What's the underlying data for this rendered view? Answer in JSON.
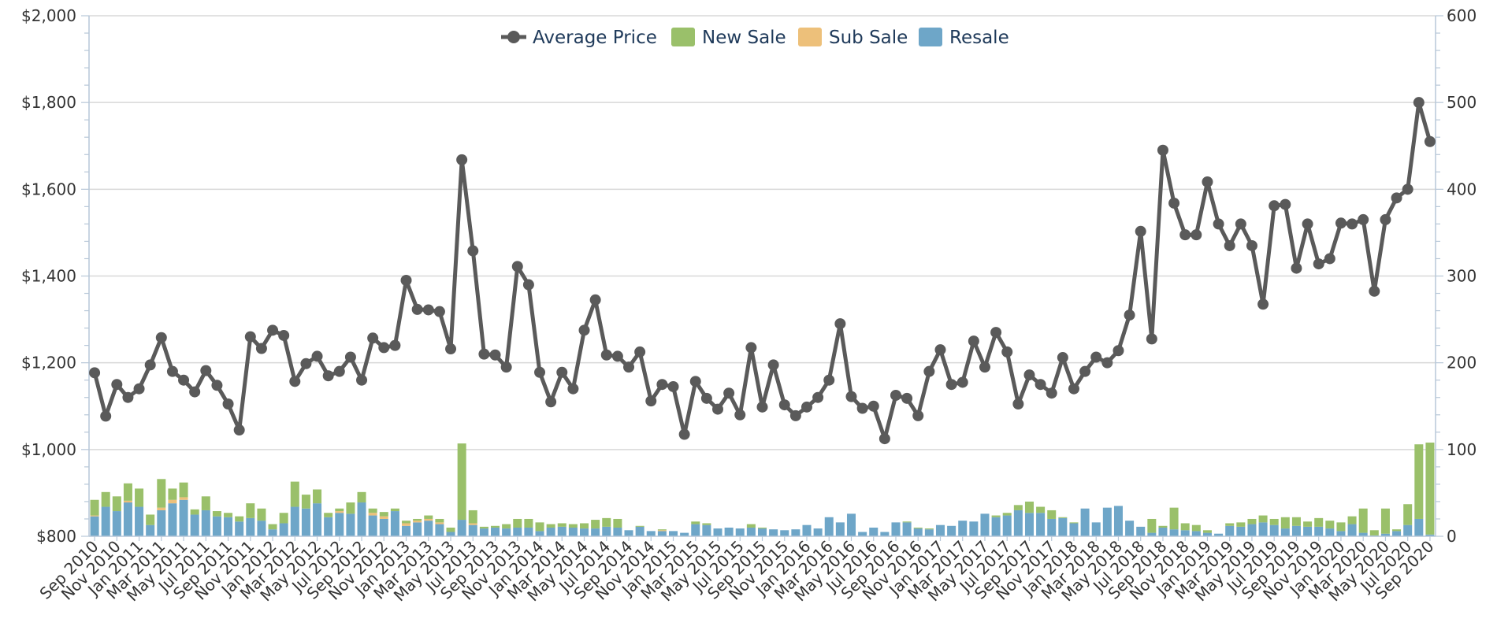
{
  "chart_data": {
    "type": "bar",
    "legend_placement": "top-center",
    "grid": true,
    "colors": {
      "average_price": "#5a5a5a",
      "new_sale": "#9ac06a",
      "sub_sale": "#edc07a",
      "resale": "#6ea6c8",
      "grid": "#d8d8d8",
      "axis": "#b7c7d8"
    },
    "legend": [
      {
        "key": "average_price",
        "label": "Average Price",
        "kind": "line"
      },
      {
        "key": "new_sale",
        "label": "New Sale",
        "kind": "bar"
      },
      {
        "key": "sub_sale",
        "label": "Sub Sale",
        "kind": "bar"
      },
      {
        "key": "resale",
        "label": "Resale",
        "kind": "bar"
      }
    ],
    "y_left": {
      "min": 800,
      "max": 2000,
      "ticks": [
        "$800",
        "$1,000",
        "$1,200",
        "$1,400",
        "$1,600",
        "$1,800",
        "$2,000"
      ]
    },
    "y_right": {
      "min": 0,
      "max": 600,
      "ticks": [
        "0",
        "100",
        "200",
        "300",
        "400",
        "500",
        "600"
      ]
    },
    "x_tick_labels": [
      "Sep 2010",
      "Nov 2010",
      "Jan 2011",
      "Mar 2011",
      "May 2011",
      "Jul 2011",
      "Sep 2011",
      "Nov 2011",
      "Jan 2012",
      "Mar 2012",
      "May 2012",
      "Jul 2012",
      "Sep 2012",
      "Nov 2012",
      "Jan 2013",
      "Mar 2013",
      "May 2013",
      "Jul 2013",
      "Sep 2013",
      "Nov 2013",
      "Jan 2014",
      "Mar 2014",
      "May 2014",
      "Jul 2014",
      "Sep 2014",
      "Nov 2014",
      "Jan 2015",
      "Mar 2015",
      "May 2015",
      "Jul 2015",
      "Sep 2015",
      "Nov 2015",
      "Jan 2016",
      "Mar 2016",
      "May 2016",
      "Jul 2016",
      "Sep 2016",
      "Nov 2016",
      "Jan 2017",
      "Mar 2017",
      "May 2017",
      "Jul 2017",
      "Sep 2017",
      "Nov 2017",
      "Jan 2018",
      "Mar 2018",
      "May 2018",
      "Jul 2018",
      "Sep 2018",
      "Nov 2018",
      "Jan 2019",
      "Mar 2019",
      "May 2019",
      "Jul 2019",
      "Sep 2019",
      "Nov 2019",
      "Jan 2020",
      "Mar 2020",
      "May 2020",
      "Jul 2020",
      "Sep 2020"
    ],
    "categories": [
      "Sep 2010",
      "Oct 2010",
      "Nov 2010",
      "Dec 2010",
      "Jan 2011",
      "Feb 2011",
      "Mar 2011",
      "Apr 2011",
      "May 2011",
      "Jun 2011",
      "Jul 2011",
      "Aug 2011",
      "Sep 2011",
      "Oct 2011",
      "Nov 2011",
      "Dec 2011",
      "Jan 2012",
      "Feb 2012",
      "Mar 2012",
      "Apr 2012",
      "May 2012",
      "Jun 2012",
      "Jul 2012",
      "Aug 2012",
      "Sep 2012",
      "Oct 2012",
      "Nov 2012",
      "Dec 2012",
      "Jan 2013",
      "Feb 2013",
      "Mar 2013",
      "Apr 2013",
      "May 2013",
      "Jun 2013",
      "Jul 2013",
      "Aug 2013",
      "Sep 2013",
      "Oct 2013",
      "Nov 2013",
      "Dec 2013",
      "Jan 2014",
      "Feb 2014",
      "Mar 2014",
      "Apr 2014",
      "May 2014",
      "Jun 2014",
      "Jul 2014",
      "Aug 2014",
      "Sep 2014",
      "Oct 2014",
      "Nov 2014",
      "Dec 2014",
      "Jan 2015",
      "Feb 2015",
      "Mar 2015",
      "Apr 2015",
      "May 2015",
      "Jun 2015",
      "Jul 2015",
      "Aug 2015",
      "Sep 2015",
      "Oct 2015",
      "Nov 2015",
      "Dec 2015",
      "Jan 2016",
      "Feb 2016",
      "Mar 2016",
      "Apr 2016",
      "May 2016",
      "Jun 2016",
      "Jul 2016",
      "Aug 2016",
      "Sep 2016",
      "Oct 2016",
      "Nov 2016",
      "Dec 2016",
      "Jan 2017",
      "Feb 2017",
      "Mar 2017",
      "Apr 2017",
      "May 2017",
      "Jun 2017",
      "Jul 2017",
      "Aug 2017",
      "Sep 2017",
      "Oct 2017",
      "Nov 2017",
      "Dec 2017",
      "Jan 2018",
      "Feb 2018",
      "Mar 2018",
      "Apr 2018",
      "May 2018",
      "Jun 2018",
      "Jul 2018",
      "Aug 2018",
      "Sep 2018",
      "Oct 2018",
      "Nov 2018",
      "Dec 2018",
      "Jan 2019",
      "Feb 2019",
      "Mar 2019",
      "Apr 2019",
      "May 2019",
      "Jun 2019",
      "Jul 2019",
      "Aug 2019",
      "Sep 2019",
      "Oct 2019",
      "Nov 2019",
      "Dec 2019",
      "Jan 2020",
      "Feb 2020",
      "Mar 2020",
      "Apr 2020",
      "May 2020",
      "Jun 2020",
      "Jul 2020",
      "Aug 2020",
      "Sep 2020"
    ],
    "series": [
      {
        "name": "Average Price",
        "axis": "left",
        "kind": "line",
        "values": [
          1177,
          1077,
          1150,
          1120,
          1140,
          1195,
          1258,
          1180,
          1160,
          1133,
          1182,
          1148,
          1105,
          1045,
          1260,
          1233,
          1275,
          1263,
          1157,
          1198,
          1215,
          1170,
          1180,
          1213,
          1160,
          1257,
          1235,
          1240,
          1390,
          1323,
          1322,
          1318,
          1232,
          1668,
          1458,
          1220,
          1218,
          1190,
          1422,
          1380,
          1178,
          1110,
          1178,
          1140,
          1275,
          1345,
          1218,
          1215,
          1190,
          1225,
          1112,
          1150,
          1145,
          1035,
          1157,
          1118,
          1093,
          1130,
          1080,
          1235,
          1098,
          1195,
          1103,
          1078,
          1098,
          1120,
          1160,
          1290,
          1122,
          1095,
          1100,
          1025,
          1125,
          1118,
          1078,
          1180,
          1230,
          1150,
          1155,
          1250,
          1190,
          1270,
          1225,
          1105,
          1172,
          1150,
          1130,
          1212,
          1140,
          1180,
          1213,
          1200,
          1228,
          1310,
          1503,
          1255,
          1690,
          1568,
          1495,
          1495,
          1617,
          1520,
          1470,
          1520,
          1470,
          1335,
          1562,
          1565,
          1418,
          1520,
          1428,
          1440,
          1522,
          1520,
          1530,
          1365,
          1530,
          1580,
          1600,
          1800,
          1710
        ]
      },
      {
        "name": "Resale",
        "axis": "right",
        "kind": "bar",
        "values": [
          23,
          34,
          29,
          39,
          34,
          13,
          30,
          38,
          42,
          25,
          30,
          23,
          22,
          17,
          21,
          18,
          8,
          15,
          34,
          32,
          38,
          22,
          27,
          26,
          39,
          24,
          20,
          29,
          12,
          16,
          18,
          14,
          5,
          19,
          13,
          9,
          10,
          9,
          10,
          10,
          6,
          10,
          11,
          10,
          9,
          9,
          11,
          10,
          7,
          11,
          6,
          6,
          6,
          4,
          14,
          13,
          9,
          10,
          9,
          10,
          9,
          8,
          7,
          8,
          13,
          9,
          22,
          16,
          26,
          5,
          10,
          5,
          16,
          16,
          9,
          8,
          13,
          12,
          18,
          17,
          26,
          22,
          24,
          30,
          27,
          27,
          20,
          21,
          15,
          32,
          16,
          33,
          35,
          18,
          11,
          4,
          10,
          8,
          7,
          6,
          4,
          3,
          12,
          11,
          14,
          16,
          13,
          9,
          12,
          11,
          11,
          9,
          6,
          14,
          4,
          1,
          3,
          6,
          13,
          20,
          2
        ]
      },
      {
        "name": "Sub Sale",
        "axis": "right",
        "kind": "bar",
        "values": [
          1,
          0,
          0,
          2,
          0,
          0,
          3,
          4,
          3,
          0,
          0,
          0,
          0,
          0,
          0,
          0,
          0,
          0,
          0,
          0,
          0,
          0,
          2,
          0,
          0,
          3,
          3,
          0,
          3,
          2,
          2,
          2,
          0,
          0,
          2,
          0,
          0,
          0,
          0,
          0,
          0,
          0,
          0,
          0,
          0,
          0,
          0,
          0,
          0,
          0,
          0,
          1,
          0,
          0,
          0,
          0,
          0,
          0,
          0,
          0,
          0,
          0,
          0,
          0,
          0,
          0,
          0,
          0,
          0,
          0,
          0,
          0,
          0,
          0,
          0,
          0,
          0,
          0,
          0,
          0,
          0,
          0,
          0,
          0,
          0,
          0,
          0,
          0,
          0,
          0,
          0,
          0,
          0,
          0,
          0,
          0,
          0,
          0,
          0,
          0,
          0,
          0,
          0,
          0,
          0,
          0,
          0,
          0,
          0,
          0,
          0,
          0,
          0,
          0,
          0,
          0,
          0,
          0,
          0,
          0,
          0
        ]
      },
      {
        "name": "New Sale",
        "axis": "right",
        "kind": "bar",
        "values": [
          18,
          17,
          17,
          20,
          21,
          12,
          33,
          13,
          17,
          6,
          16,
          6,
          5,
          6,
          17,
          14,
          6,
          12,
          29,
          16,
          16,
          5,
          3,
          13,
          12,
          5,
          5,
          3,
          3,
          2,
          4,
          4,
          5,
          88,
          15,
          2,
          2,
          5,
          10,
          10,
          10,
          4,
          4,
          4,
          6,
          10,
          10,
          10,
          0,
          1,
          0,
          1,
          0,
          0,
          3,
          2,
          0,
          0,
          0,
          4,
          1,
          0,
          0,
          0,
          0,
          0,
          0,
          0,
          0,
          0,
          0,
          0,
          0,
          1,
          1,
          1,
          0,
          0,
          0,
          0,
          0,
          2,
          3,
          6,
          13,
          7,
          10,
          1,
          1,
          0,
          0,
          0,
          0,
          0,
          0,
          16,
          2,
          25,
          8,
          7,
          3,
          0,
          3,
          5,
          6,
          8,
          7,
          13,
          10,
          6,
          10,
          9,
          10,
          9,
          28,
          6,
          29,
          2,
          24,
          86,
          106
        ]
      }
    ]
  }
}
